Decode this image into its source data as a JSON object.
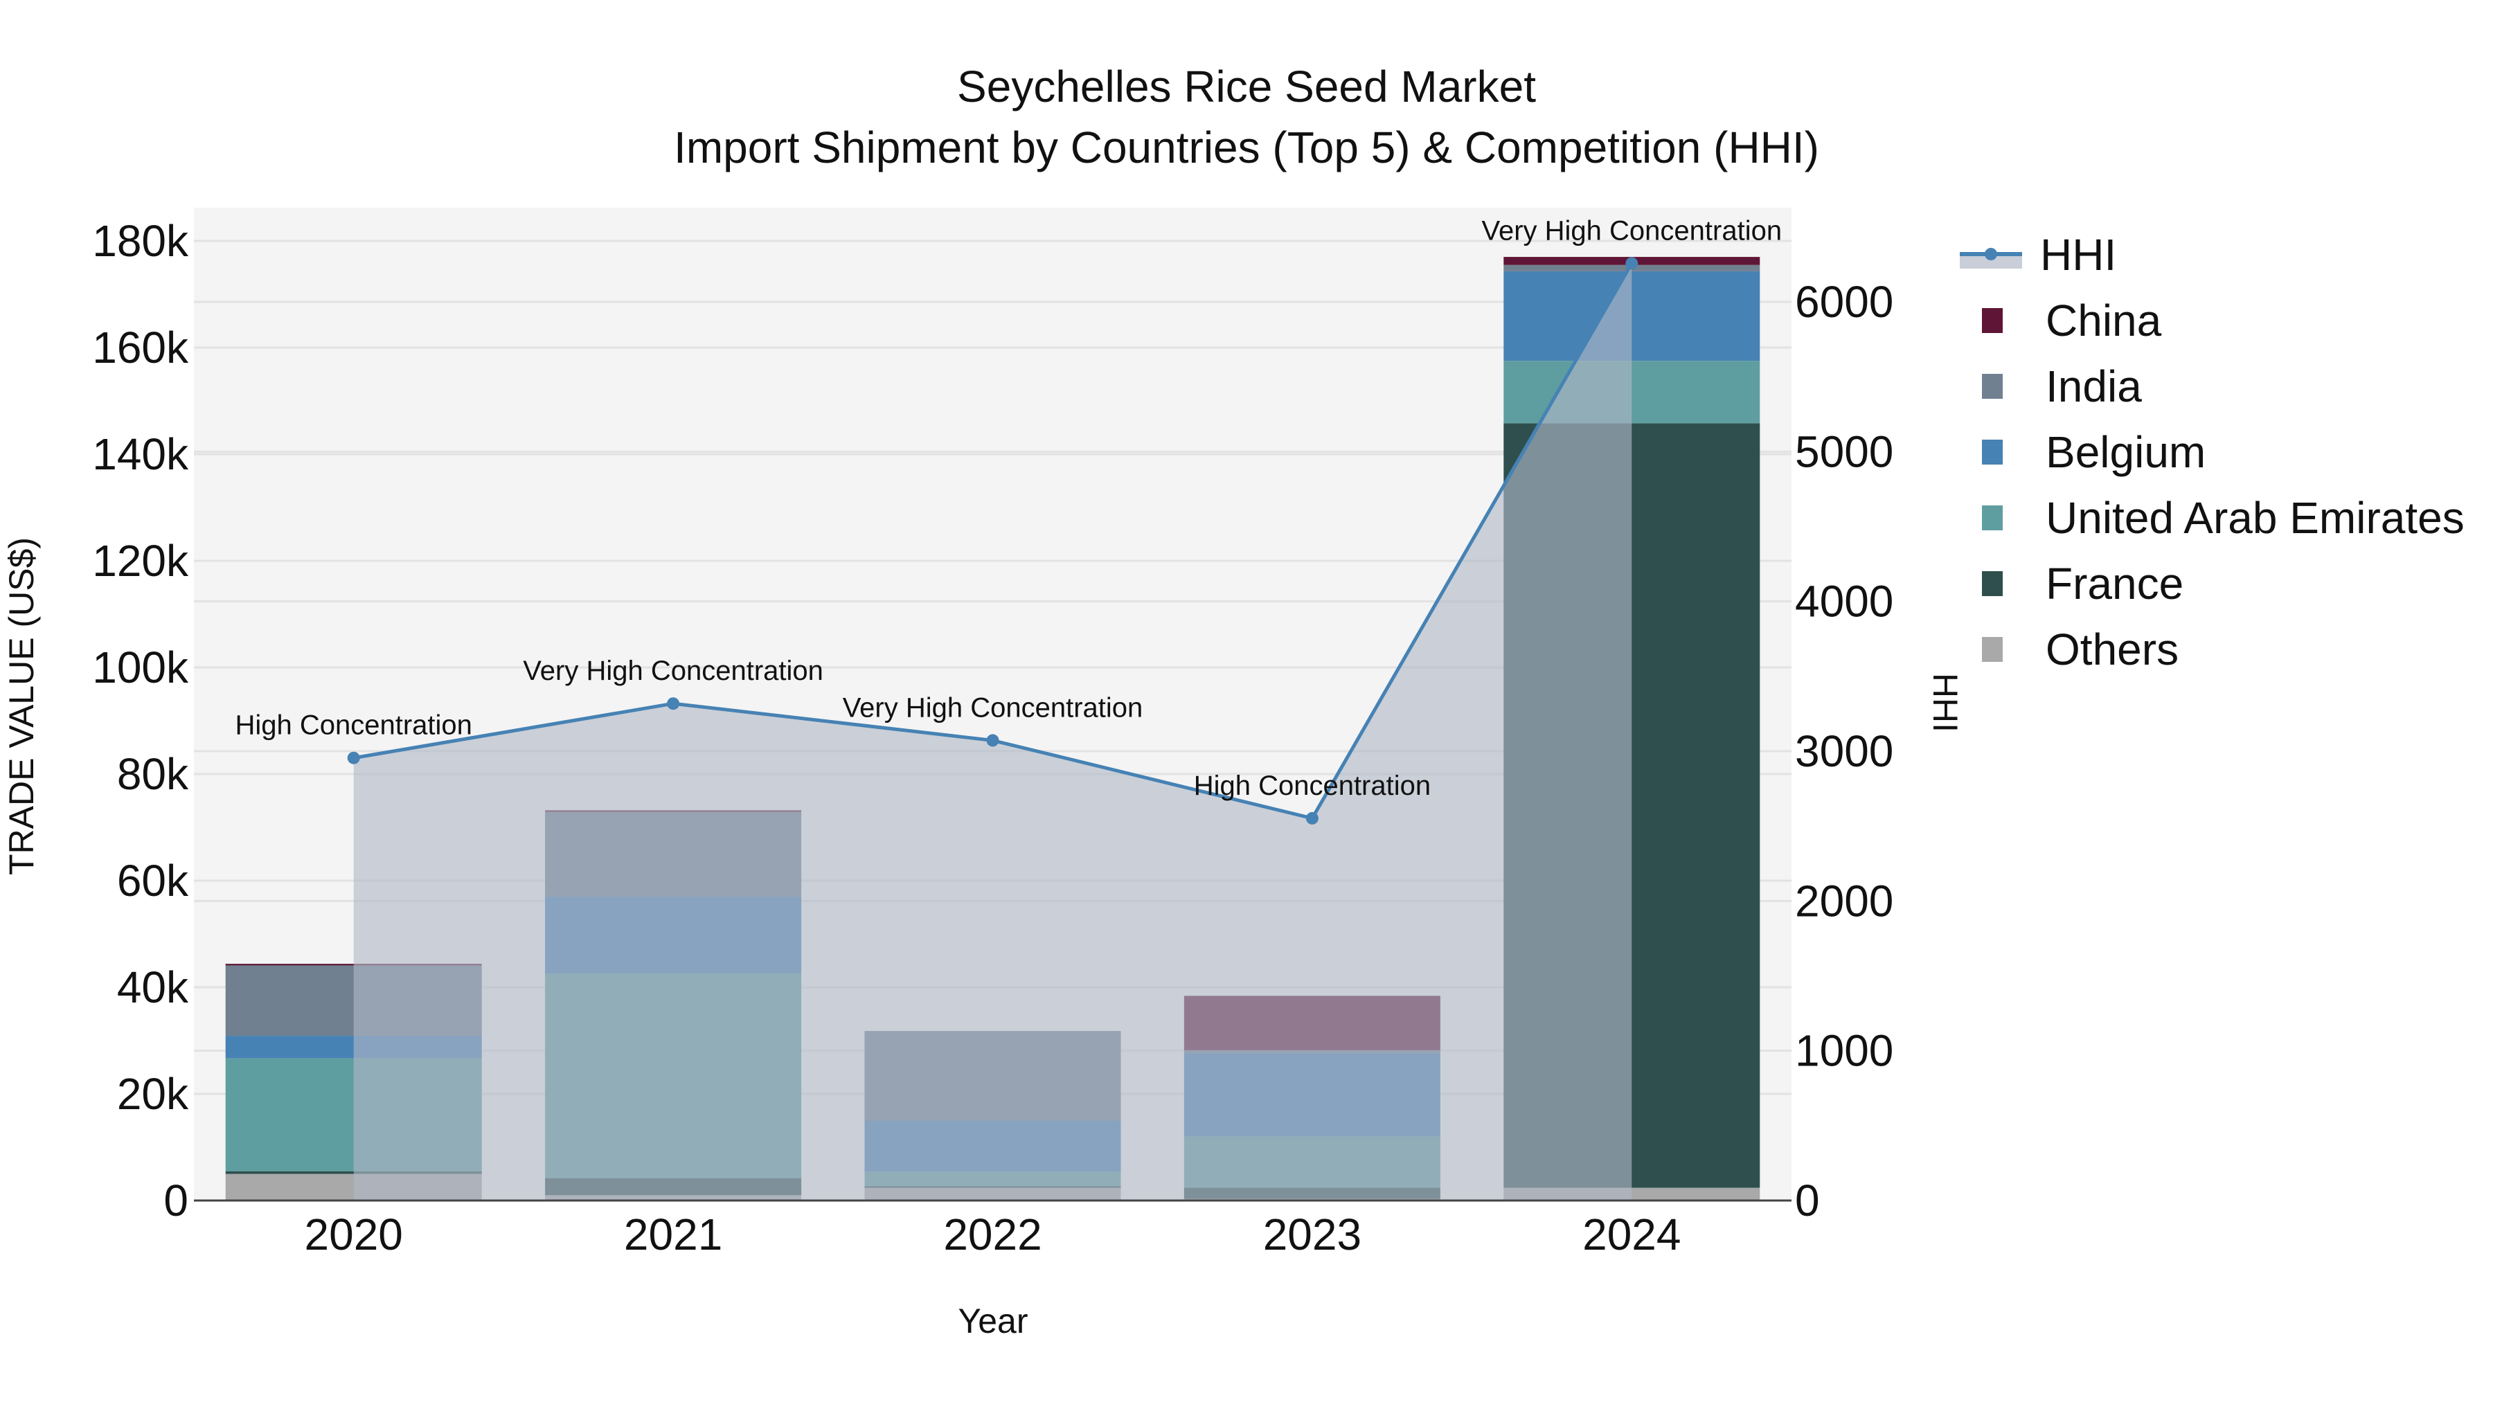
{
  "title": {
    "line1": "Seychelles Rice Seed Market",
    "line2": "Import Shipment by Countries (Top 5) & Competition (HHI)"
  },
  "axes": {
    "x_label": "Year",
    "y_left_label": "TRADE VALUE (US$)",
    "y_right_label": "HHI",
    "y_left_ticks": [
      "0",
      "20k",
      "40k",
      "60k",
      "80k",
      "100k",
      "120k",
      "140k",
      "160k",
      "180k"
    ],
    "y_right_ticks": [
      "0",
      "1000",
      "2000",
      "3000",
      "4000",
      "5000",
      "6000"
    ],
    "x_ticks": [
      "2020",
      "2021",
      "2022",
      "2023",
      "2024"
    ]
  },
  "legend": [
    {
      "name": "HHI",
      "type": "line",
      "color": "#4682b4"
    },
    {
      "name": "China",
      "type": "bar",
      "color": "#5f1535"
    },
    {
      "name": "India",
      "type": "bar",
      "color": "#708090"
    },
    {
      "name": "Belgium",
      "type": "bar",
      "color": "#4682b4"
    },
    {
      "name": "United Arab Emirates",
      "type": "bar",
      "color": "#5f9ea0"
    },
    {
      "name": "France",
      "type": "bar",
      "color": "#2f4f4f"
    },
    {
      "name": "Others",
      "type": "bar",
      "color": "#a9a9a9"
    }
  ],
  "annotations": [
    {
      "year": "2020",
      "text": "High Concentration"
    },
    {
      "year": "2021",
      "text": "Very High Concentration"
    },
    {
      "year": "2022",
      "text": "Very High Concentration"
    },
    {
      "year": "2023",
      "text": "High Concentration"
    },
    {
      "year": "2024",
      "text": "Very High Concentration"
    }
  ],
  "chart_data": {
    "type": "bar",
    "stacked": true,
    "title": "Seychelles Rice Seed Market — Import Shipment by Countries (Top 5) & Competition (HHI)",
    "xlabel": "Year",
    "ylabel": "TRADE VALUE (US$)",
    "y2label": "HHI",
    "categories": [
      "2020",
      "2021",
      "2022",
      "2023",
      "2024"
    ],
    "ylim": [
      0,
      186000
    ],
    "y2lim": [
      0,
      6600
    ],
    "grid": true,
    "legend_position": "right",
    "series": [
      {
        "name": "Others",
        "color": "#a9a9a9",
        "values": [
          5000,
          1000,
          2400,
          300,
          2400
        ]
      },
      {
        "name": "France",
        "color": "#2f4f4f",
        "values": [
          500,
          3200,
          300,
          2100,
          143400
        ]
      },
      {
        "name": "United Arab Emirates",
        "color": "#5f9ea0",
        "values": [
          21200,
          38400,
          2700,
          9600,
          11700
        ]
      },
      {
        "name": "Belgium",
        "color": "#4682b4",
        "values": [
          4200,
          14400,
          9600,
          15600,
          16800
        ]
      },
      {
        "name": "India",
        "color": "#708090",
        "values": [
          13200,
          15900,
          16800,
          600,
          1200
        ]
      },
      {
        "name": "China",
        "color": "#5f1535",
        "values": [
          300,
          300,
          0,
          10200,
          1500
        ]
      }
    ],
    "hhi": {
      "name": "HHI",
      "type": "line",
      "axis": "right",
      "color": "#4682b4",
      "values": [
        2955,
        3318,
        3072,
        2552,
        6257
      ],
      "labels": [
        "High Concentration",
        "Very High Concentration",
        "Very High Concentration",
        "High Concentration",
        "Very High Concentration"
      ]
    }
  }
}
